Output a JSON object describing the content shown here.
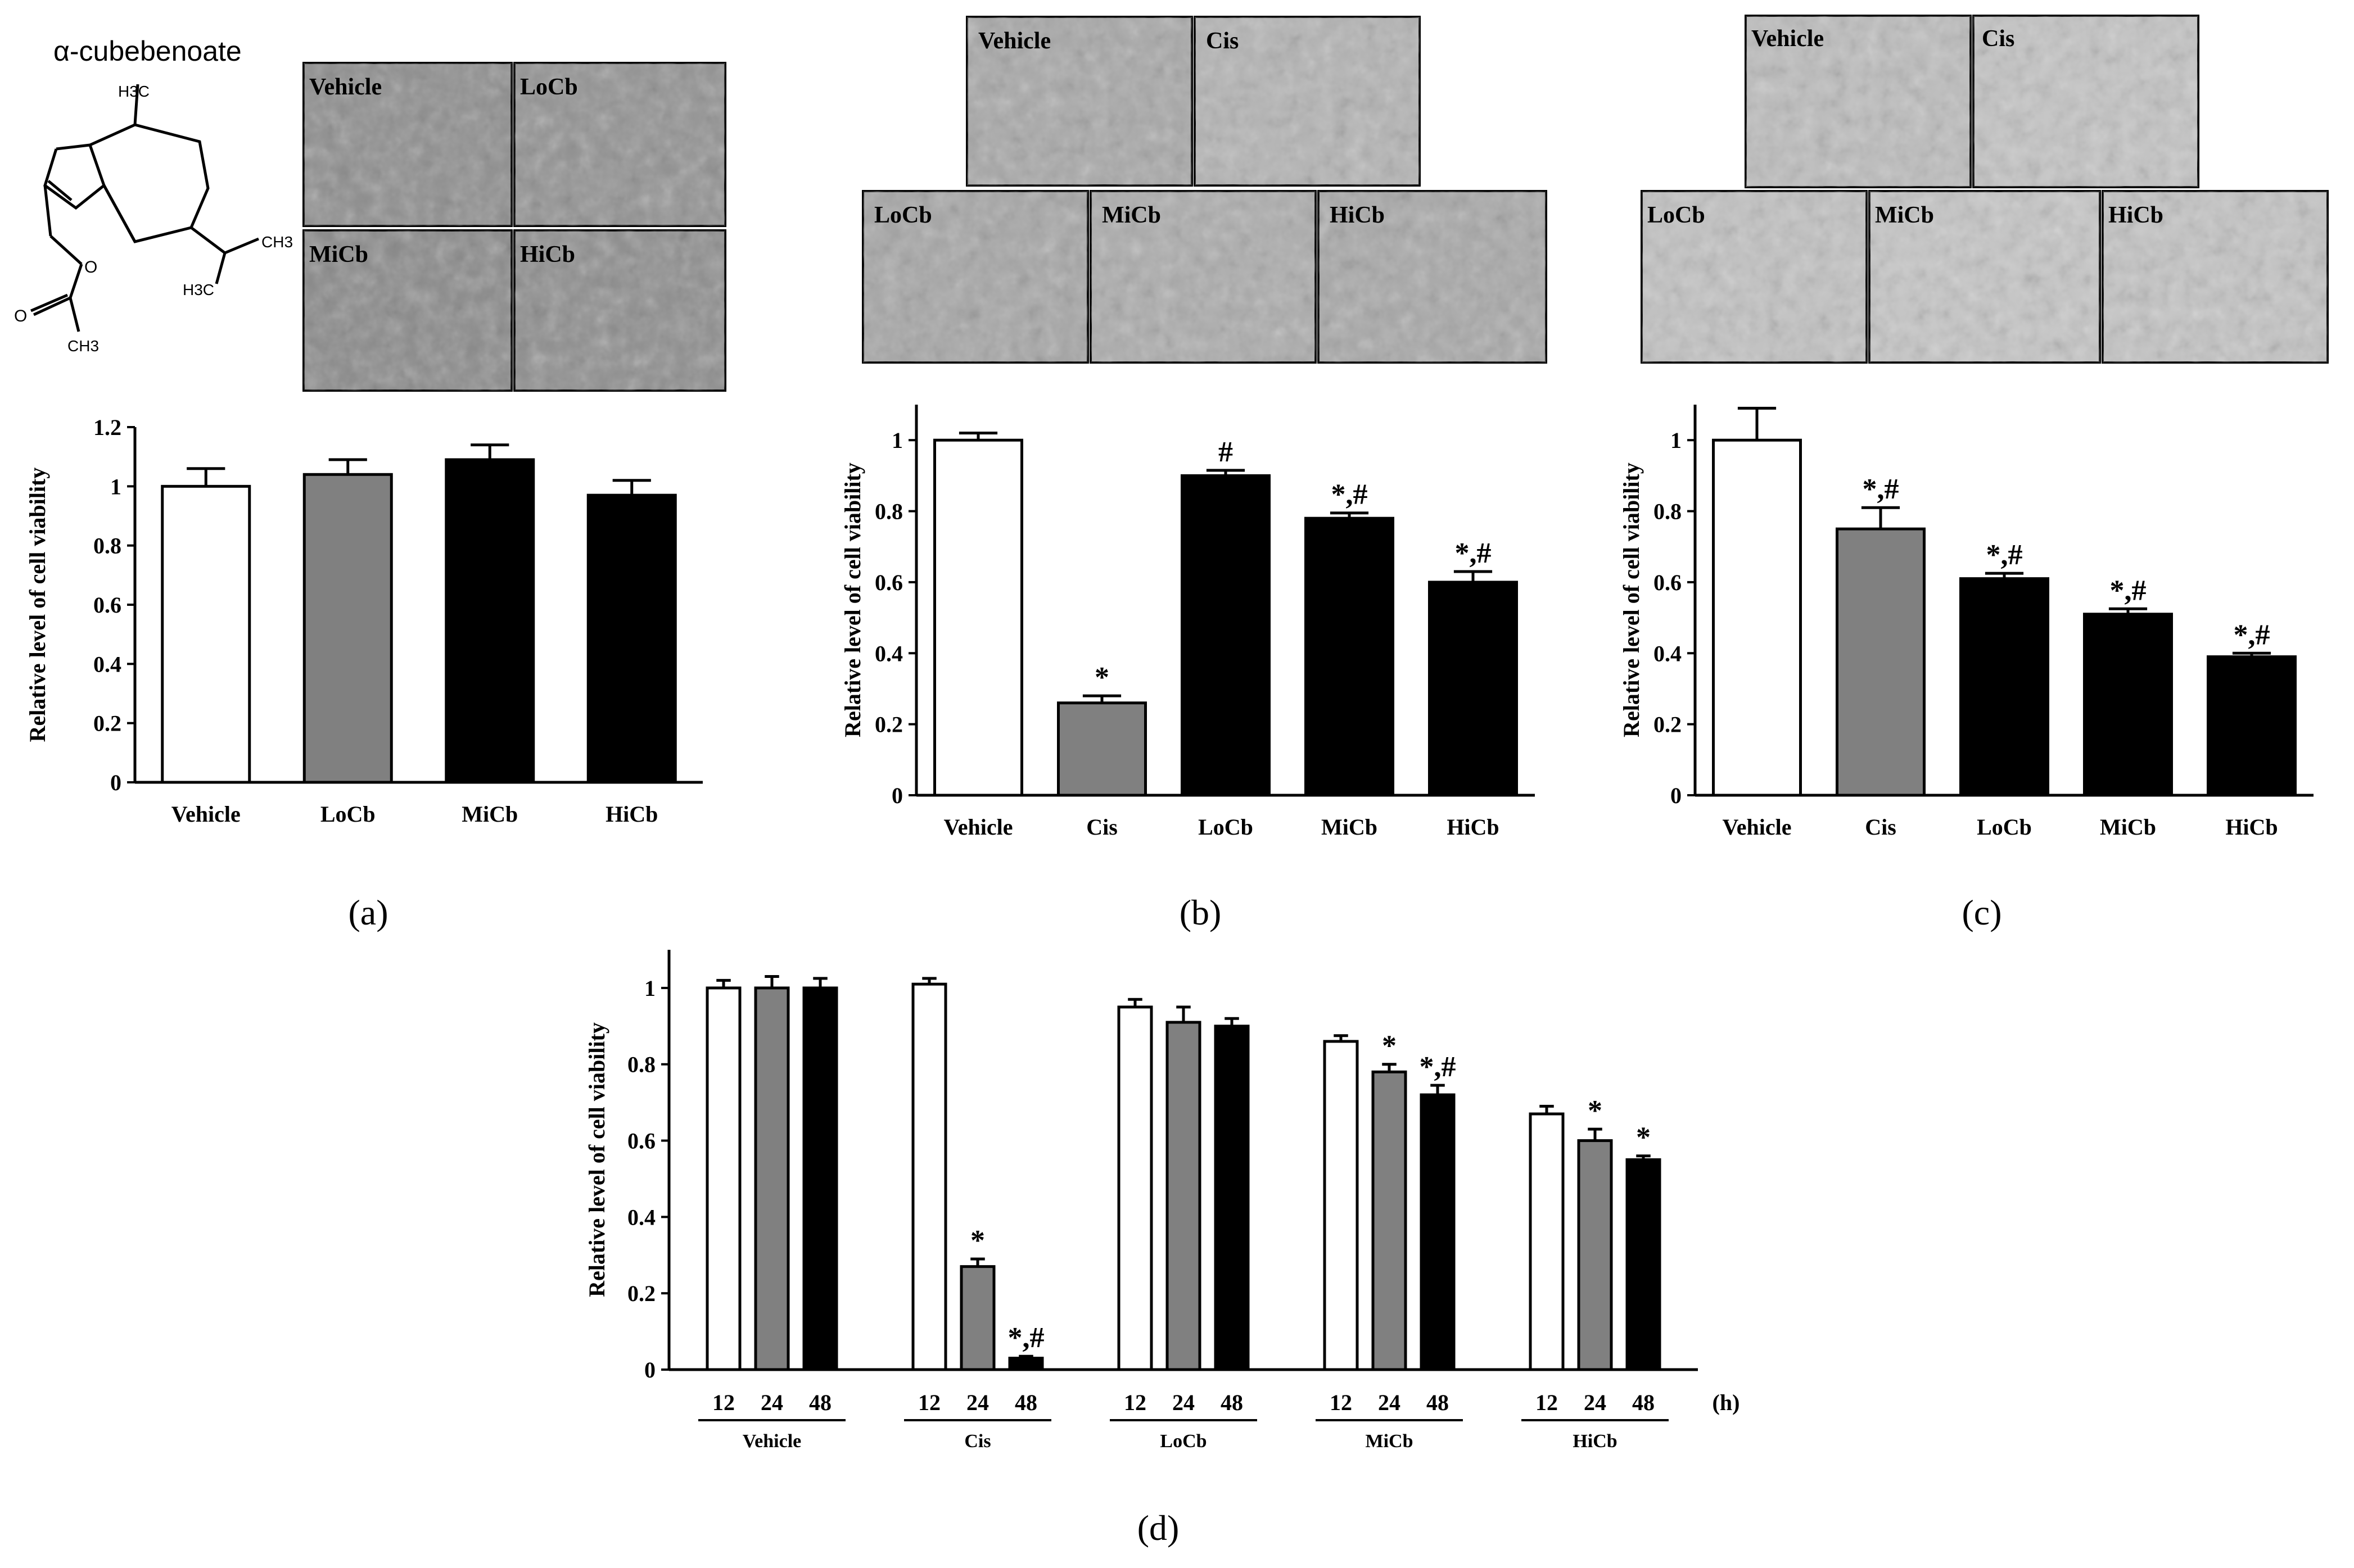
{
  "colors": {
    "white": "#ffffff",
    "gray": "#808080",
    "black": "#000000"
  },
  "molecule": {
    "name": "α-cubebenoate",
    "atoms": [
      "H3C",
      "CH3",
      "H3C",
      "O",
      "O",
      "CH3"
    ]
  },
  "panel_labels": [
    "(a)",
    "(b)",
    "(c)",
    "(d)"
  ],
  "micrographs": {
    "a": [
      "Vehicle",
      "LoCb",
      "MiCb",
      "HiCb"
    ],
    "b": [
      "Vehicle",
      "Cis",
      "LoCb",
      "MiCb",
      "HiCb"
    ],
    "c": [
      "Vehicle",
      "Cis",
      "LoCb",
      "MiCb",
      "HiCb"
    ]
  },
  "chart_data": [
    {
      "id": "a",
      "type": "bar",
      "ylabel": "Relative level of cell viability",
      "ylim": [
        0,
        1.2
      ],
      "yticks": [
        "0",
        "0.2",
        "0.4",
        "0.6",
        "0.8",
        "1",
        "1.2"
      ],
      "categories": [
        "Vehicle",
        "LoCb",
        "MiCb",
        "HiCb"
      ],
      "values": [
        1.0,
        1.04,
        1.09,
        0.97
      ],
      "errors": [
        0.06,
        0.05,
        0.05,
        0.05
      ],
      "fills": [
        "white",
        "gray",
        "black",
        "black"
      ],
      "sig": [
        "",
        "",
        "",
        ""
      ]
    },
    {
      "id": "b",
      "type": "bar",
      "ylabel": "Relative level of cell viability",
      "ylim": [
        0,
        1.1
      ],
      "yticks": [
        "0",
        "0.2",
        "0.4",
        "0.6",
        "0.8",
        "1"
      ],
      "categories": [
        "Vehicle",
        "Cis",
        "LoCb",
        "MiCb",
        "HiCb"
      ],
      "values": [
        1.0,
        0.26,
        0.9,
        0.78,
        0.6
      ],
      "errors": [
        0.02,
        0.02,
        0.015,
        0.015,
        0.03
      ],
      "fills": [
        "white",
        "gray",
        "black",
        "black",
        "black"
      ],
      "sig": [
        "",
        "*",
        "#",
        "*,#",
        "*,#"
      ]
    },
    {
      "id": "c",
      "type": "bar",
      "ylabel": "Relative level of cell viability",
      "ylim": [
        0,
        1.1
      ],
      "yticks": [
        "0",
        "0.2",
        "0.4",
        "0.6",
        "0.8",
        "1"
      ],
      "categories": [
        "Vehicle",
        "Cis",
        "LoCb",
        "MiCb",
        "HiCb"
      ],
      "values": [
        1.0,
        0.75,
        0.61,
        0.51,
        0.39
      ],
      "errors": [
        0.09,
        0.06,
        0.015,
        0.015,
        0.01
      ],
      "fills": [
        "white",
        "gray",
        "black",
        "black",
        "black"
      ],
      "sig": [
        "",
        "*,#",
        "*,#",
        "*,#",
        "*,#"
      ]
    },
    {
      "id": "d",
      "type": "bar",
      "ylabel": "Relative level of cell viability",
      "ylim": [
        0,
        1.1
      ],
      "yticks": [
        "0",
        "0.2",
        "0.4",
        "0.6",
        "0.8",
        "1"
      ],
      "time_labels": [
        "12",
        "24",
        "48"
      ],
      "unit": "(h)",
      "groups": [
        {
          "name": "Vehicle",
          "values": [
            1.0,
            1.0,
            1.0
          ],
          "errors": [
            0.02,
            0.03,
            0.025
          ],
          "sig": [
            "",
            "",
            ""
          ]
        },
        {
          "name": "Cis",
          "values": [
            1.01,
            0.27,
            0.03
          ],
          "errors": [
            0.015,
            0.02,
            0.005
          ],
          "sig": [
            "",
            "*",
            "*,#"
          ]
        },
        {
          "name": "LoCb",
          "values": [
            0.95,
            0.91,
            0.9
          ],
          "errors": [
            0.02,
            0.04,
            0.02
          ],
          "sig": [
            "",
            "",
            ""
          ]
        },
        {
          "name": "MiCb",
          "values": [
            0.86,
            0.78,
            0.72
          ],
          "errors": [
            0.015,
            0.02,
            0.025
          ],
          "sig": [
            "",
            "*",
            "*,#"
          ]
        },
        {
          "name": "HiCb",
          "values": [
            0.67,
            0.6,
            0.55
          ],
          "errors": [
            0.02,
            0.03,
            0.01
          ],
          "sig": [
            "",
            "*",
            "*"
          ]
        }
      ],
      "fills": [
        "white",
        "gray",
        "black"
      ]
    }
  ]
}
